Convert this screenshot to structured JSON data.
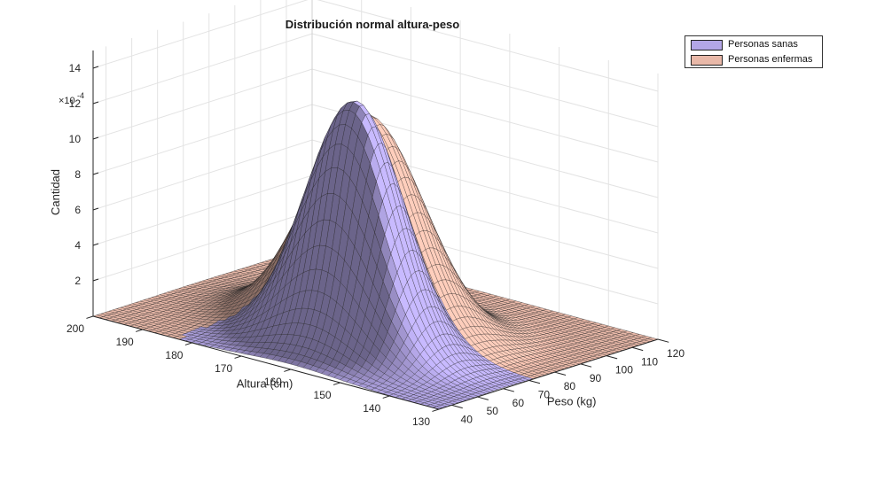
{
  "chart_data": {
    "type": "surface",
    "title": "Distribución normal altura-peso",
    "xlabel": "Peso (kg)",
    "ylabel": "Altura (cm)",
    "zlabel": "Cantidad",
    "z_exponent_label": "×10",
    "z_exponent_power": "-4",
    "xlim": [
      35,
      120
    ],
    "ylim": [
      130,
      200
    ],
    "zlim": [
      0,
      15
    ],
    "x_ticks": [
      "40",
      "50",
      "60",
      "70",
      "80",
      "90",
      "100",
      "110",
      "120"
    ],
    "y_ticks": [
      "130",
      "140",
      "150",
      "160",
      "170",
      "180",
      "190",
      "200"
    ],
    "z_ticks": [
      "2",
      "4",
      "6",
      "8",
      "10",
      "12",
      "14"
    ],
    "grid": true,
    "legend_position": "top-right",
    "series": [
      {
        "name": "Personas sanas",
        "color": "#b3a6e6",
        "peak": 14.0,
        "mean_x": 60,
        "mean_y": 160,
        "sd_x": 9,
        "sd_y": 9
      },
      {
        "name": "Personas enfermas",
        "color": "#e8b8a8",
        "peak": 12.2,
        "mean_x": 74,
        "mean_y": 165,
        "sd_x": 12,
        "sd_y": 10
      }
    ]
  }
}
